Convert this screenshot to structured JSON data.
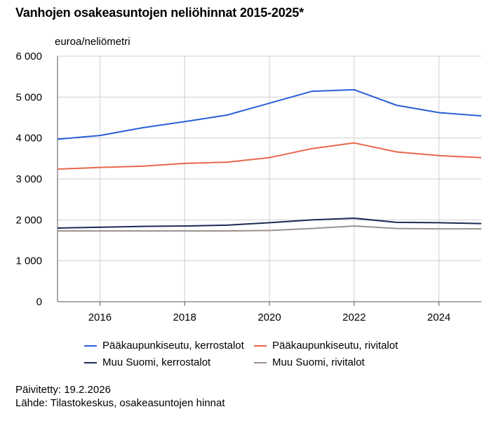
{
  "header": {
    "title": "Vanhojen osakeasuntojen neliöhinnat 2015-2025*"
  },
  "chart_data": {
    "type": "line",
    "title": "Vanhojen osakeasuntojen neliöhinnat 2015-2025*",
    "ylabel": "euroa/neliömetri",
    "xlabel": "",
    "x": [
      2015,
      2016,
      2017,
      2018,
      2019,
      2020,
      2021,
      2022,
      2023,
      2024,
      2025
    ],
    "xlim": [
      2015,
      2025
    ],
    "ylim": [
      0,
      6000
    ],
    "xticks": [
      2016,
      2018,
      2020,
      2022,
      2024
    ],
    "xtick_labels": [
      "2016",
      "2018",
      "2020",
      "2022",
      "2024"
    ],
    "yticks": [
      0,
      1000,
      2000,
      3000,
      4000,
      5000,
      6000
    ],
    "ytick_labels": [
      "0",
      "1 000",
      "2 000",
      "3 000",
      "4 000",
      "5 000",
      "6 000"
    ],
    "grid": true,
    "legend_position": "bottom",
    "series": [
      {
        "name": "Pääkaupunkiseutu, kerrostalot",
        "color": "#2a5fd9",
        "values": [
          3970,
          4060,
          4250,
          4400,
          4560,
          4850,
          5140,
          5180,
          4800,
          4620,
          4540
        ]
      },
      {
        "name": "Pääkaupunkiseutu, rivitalot",
        "color": "#e8674c",
        "values": [
          3240,
          3280,
          3310,
          3380,
          3410,
          3520,
          3740,
          3880,
          3660,
          3570,
          3520
        ]
      },
      {
        "name": "Muu Suomi, kerrostalot",
        "color": "#1c2a55",
        "values": [
          1800,
          1820,
          1840,
          1850,
          1870,
          1930,
          2000,
          2040,
          1940,
          1930,
          1910
        ]
      },
      {
        "name": "Muu Suomi, rivitalot",
        "color": "#9b918a",
        "values": [
          1730,
          1730,
          1730,
          1730,
          1730,
          1740,
          1790,
          1850,
          1790,
          1780,
          1780
        ]
      }
    ]
  },
  "footer": {
    "updated": "Päivitetty: 19.2.2026",
    "source": "Lähde: Tilastokeskus, osakeasuntojen hinnat"
  }
}
